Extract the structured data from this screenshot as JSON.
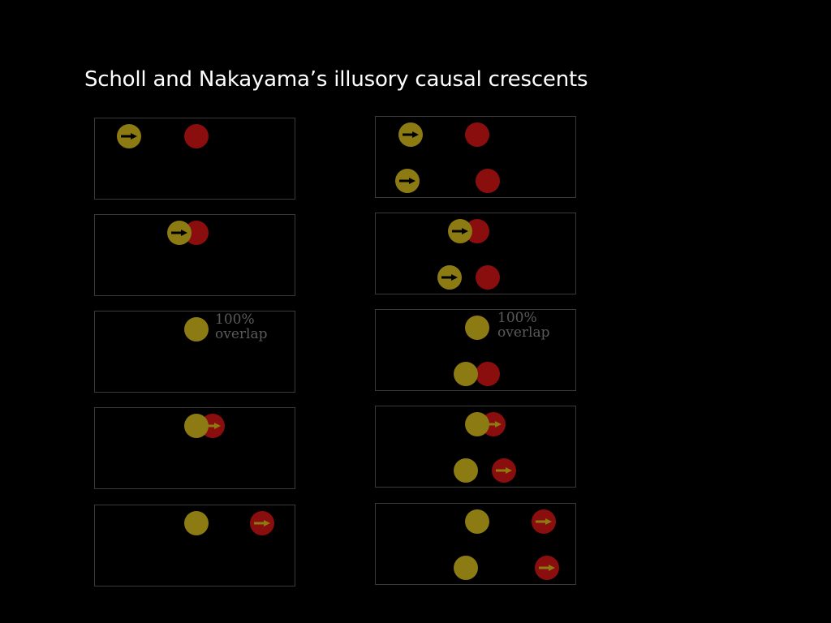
{
  "title": "Scholl and Nakayama’s illusory causal crescents",
  "overlap_label_line1": "100%",
  "overlap_label_line2": "overlap",
  "colors": {
    "background": "#000000",
    "launcher_ball": "#8c7a12",
    "target_ball": "#8a0e0e",
    "arrow_on_yellow": "#000000",
    "arrow_on_red": "#8c7a12",
    "panel_border": "#3a3a3a",
    "label_text": "#5a5a5a"
  },
  "icons": {
    "motion_arrow": "right-arrow-icon"
  }
}
